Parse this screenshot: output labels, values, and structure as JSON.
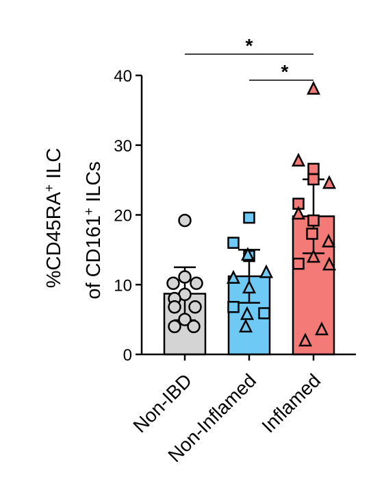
{
  "chart_data": {
    "type": "bar",
    "categories": [
      "Non-IBD",
      "Non-Inflamed",
      "Inflamed"
    ],
    "ylabel_line1": "%CD45RA",
    "ylabel_line1_sup": "+",
    "ylabel_line1_tail": " ILC",
    "ylabel_line2": "of  CD161",
    "ylabel_line2_sup": "+",
    "ylabel_line2_tail": " ILCs",
    "ylim": [
      0,
      40
    ],
    "yticks": [
      "0",
      "10",
      "20",
      "30",
      "40"
    ],
    "series": [
      {
        "category": "Non-IBD",
        "mean": 8.7,
        "sd": 3.8,
        "color": "#d4d4d4",
        "marker": "circle",
        "points": [
          19.2,
          11.1,
          10.2,
          10.2,
          8.6,
          8.0,
          6.8,
          6.8,
          5.0,
          4.0,
          4.0
        ]
      },
      {
        "category": "Non-Inflamed",
        "mean": 11.2,
        "sd": 3.8,
        "color": "#6ec9f5",
        "marker": "mixed",
        "points_square": [
          19.6,
          16.0,
          14.1,
          6.8,
          5.9
        ],
        "points_triangle": [
          14.3,
          11.8,
          11.0,
          9.6,
          5.8,
          4.0
        ]
      },
      {
        "category": "Inflamed",
        "mean": 19.8,
        "sd": 5.3,
        "color": "#f47a77",
        "marker": "mixed",
        "points_square": [
          26.6,
          25.1,
          21.6,
          19.2,
          17.3,
          13.0
        ],
        "points_triangle": [
          38.1,
          27.8,
          24.6,
          20.2,
          16.2,
          14.0,
          12.9,
          3.6,
          2.0
        ]
      }
    ],
    "significance": [
      {
        "from": "Non-IBD",
        "to": "Inflamed",
        "label": "*"
      },
      {
        "from": "Non-Inflamed",
        "to": "Inflamed",
        "label": "*"
      }
    ]
  }
}
